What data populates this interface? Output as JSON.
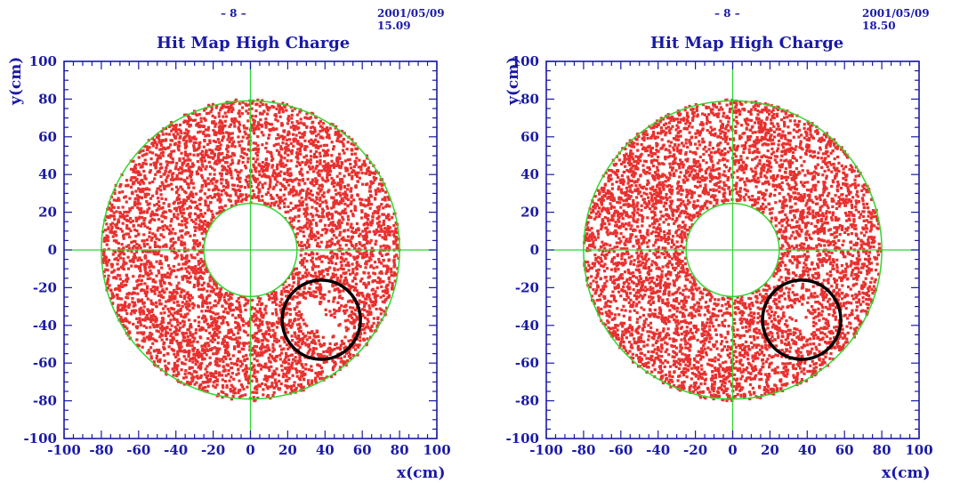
{
  "chart_data": [
    {
      "type": "scatter",
      "page_marker": "– 8 –",
      "timestamp": "2001/05/09   15.09",
      "title": "Hit Map High Charge",
      "xlabel": "x(cm)",
      "ylabel": "y(cm)",
      "xlim": [
        -100,
        100
      ],
      "ylim": [
        -100,
        100
      ],
      "xticks": [
        -100,
        -80,
        -60,
        -40,
        -20,
        0,
        20,
        40,
        60,
        80,
        100
      ],
      "yticks": [
        100,
        80,
        60,
        40,
        20,
        0,
        -20,
        -40,
        -60,
        -80,
        -100
      ],
      "grid": false,
      "detector": {
        "inner_radius": 25,
        "outer_radius": 80,
        "center": [
          0,
          0
        ]
      },
      "series": [
        {
          "values": "dense hit pattern filling annulus 25 < r < 80"
        }
      ],
      "annotation": {
        "shape": "circle",
        "center": [
          38,
          -37
        ],
        "radius": 21,
        "note": "region with missing hits (dead cells)"
      },
      "colors": {
        "hits": "#e8312f",
        "frame": "#1a1aa6",
        "outline": "#2fd62f",
        "annotation": "#000000"
      }
    },
    {
      "type": "scatter",
      "page_marker": "– 8 –",
      "timestamp": "2001/05/09   18.50",
      "title": "Hit Map High Charge",
      "xlabel": "x(cm)",
      "ylabel": "y(cm)",
      "xlim": [
        -100,
        100
      ],
      "ylim": [
        -100,
        100
      ],
      "xticks": [
        -100,
        -80,
        -60,
        -40,
        -20,
        0,
        20,
        40,
        60,
        80,
        100
      ],
      "yticks": [
        100,
        80,
        60,
        40,
        20,
        0,
        -20,
        -40,
        -60,
        -80,
        -100
      ],
      "grid": false,
      "detector": {
        "inner_radius": 25,
        "outer_radius": 80,
        "center": [
          0,
          0
        ]
      },
      "series": [
        {
          "values": "dense hit pattern filling annulus 25 < r < 80"
        }
      ],
      "annotation": {
        "shape": "circle",
        "center": [
          37,
          -37
        ],
        "radius": 21,
        "note": "region with fewer missing hits"
      },
      "colors": {
        "hits": "#e8312f",
        "frame": "#1a1aa6",
        "outline": "#2fd62f",
        "annotation": "#000000"
      }
    }
  ]
}
